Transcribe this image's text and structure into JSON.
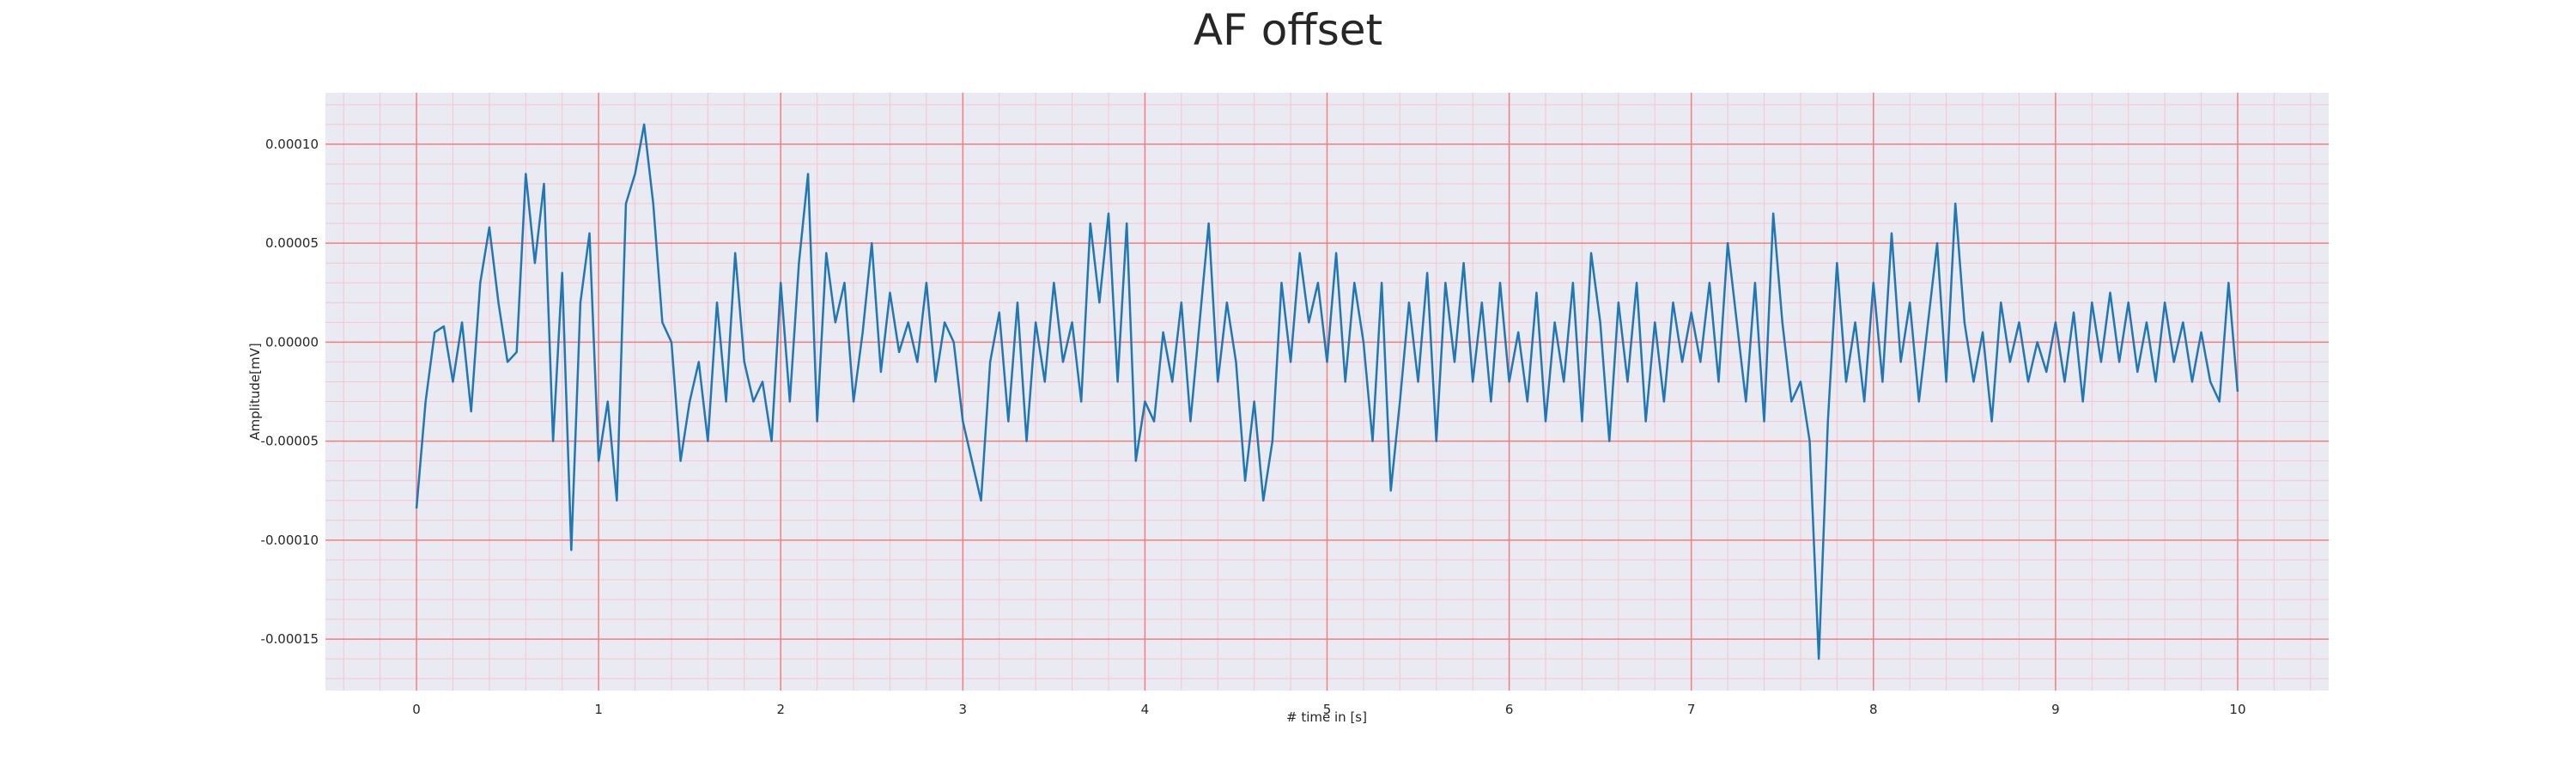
{
  "chart_data": {
    "type": "line",
    "title": "AF offset",
    "xlabel": "# time in [s]",
    "ylabel": "Amplitude[mV]",
    "xlim": [
      -0.5,
      10.5
    ],
    "ylim": [
      -0.000176,
      0.000126
    ],
    "xticks": [
      0,
      1,
      2,
      3,
      4,
      5,
      6,
      7,
      8,
      9,
      10
    ],
    "yticks": [
      {
        "value": -0.00015,
        "label": "-0.00015"
      },
      {
        "value": -0.0001,
        "label": "-0.00010"
      },
      {
        "value": -5e-05,
        "label": "-0.00005"
      },
      {
        "value": 0,
        "label": "0.00000"
      },
      {
        "value": 5e-05,
        "label": "0.00005"
      },
      {
        "value": 0.0001,
        "label": "0.00010"
      }
    ],
    "xticks_minor": [
      -0.4,
      -0.2,
      0,
      0.2,
      0.4,
      0.6,
      0.8,
      1,
      1.2,
      1.4,
      1.6,
      1.8,
      2,
      2.2,
      2.4,
      2.6,
      2.8,
      3,
      3.2,
      3.4,
      3.6,
      3.8,
      4,
      4.2,
      4.4,
      4.6,
      4.8,
      5,
      5.2,
      5.4,
      5.6,
      5.8,
      6,
      6.2,
      6.4,
      6.6,
      6.8,
      7,
      7.2,
      7.4,
      7.6,
      7.8,
      8,
      8.2,
      8.4,
      8.6,
      8.8,
      9,
      9.2,
      9.4,
      9.6,
      9.8,
      10,
      10.2,
      10.4
    ],
    "yticks_minor": [
      -0.00017,
      -0.00016,
      -0.00015,
      -0.00014,
      -0.00013,
      -0.00012,
      -0.00011,
      -0.0001,
      -9e-05,
      -8e-05,
      -7e-05,
      -6e-05,
      -5e-05,
      -4e-05,
      -3e-05,
      -2e-05,
      -1e-05,
      0,
      1e-05,
      2e-05,
      3e-05,
      4e-05,
      5e-05,
      6e-05,
      7e-05,
      8e-05,
      9e-05,
      0.0001,
      0.00011,
      0.00012
    ],
    "grid": true,
    "grid_color": "#f08080",
    "minor_grid_color": "#f5c6cf",
    "background": "#eaeaf2",
    "x": [
      0,
      0.05,
      0.1,
      0.15,
      0.2,
      0.25,
      0.3,
      0.35,
      0.4,
      0.45,
      0.5,
      0.55,
      0.6,
      0.65,
      0.7,
      0.75,
      0.8,
      0.85,
      0.9,
      0.95,
      1,
      1.05,
      1.1,
      1.15,
      1.2,
      1.25,
      1.3,
      1.35,
      1.4,
      1.45,
      1.5,
      1.55,
      1.6,
      1.65,
      1.7,
      1.75,
      1.8,
      1.85,
      1.9,
      1.95,
      2,
      2.05,
      2.1,
      2.15,
      2.2,
      2.25,
      2.3,
      2.35,
      2.4,
      2.45,
      2.5,
      2.55,
      2.6,
      2.65,
      2.7,
      2.75,
      2.8,
      2.85,
      2.9,
      2.95,
      3,
      3.05,
      3.1,
      3.15,
      3.2,
      3.25,
      3.3,
      3.35,
      3.4,
      3.45,
      3.5,
      3.55,
      3.6,
      3.65,
      3.7,
      3.75,
      3.8,
      3.85,
      3.9,
      3.95,
      4,
      4.05,
      4.1,
      4.15,
      4.2,
      4.25,
      4.3,
      4.35,
      4.4,
      4.45,
      4.5,
      4.55,
      4.6,
      4.65,
      4.7,
      4.75,
      4.8,
      4.85,
      4.9,
      4.95,
      5,
      5.05,
      5.1,
      5.15,
      5.2,
      5.25,
      5.3,
      5.35,
      5.4,
      5.45,
      5.5,
      5.55,
      5.6,
      5.65,
      5.7,
      5.75,
      5.8,
      5.85,
      5.9,
      5.95,
      6,
      6.05,
      6.1,
      6.15,
      6.2,
      6.25,
      6.3,
      6.35,
      6.4,
      6.45,
      6.5,
      6.55,
      6.6,
      6.65,
      6.7,
      6.75,
      6.8,
      6.85,
      6.9,
      6.95,
      7,
      7.05,
      7.1,
      7.15,
      7.2,
      7.25,
      7.3,
      7.35,
      7.4,
      7.45,
      7.5,
      7.55,
      7.6,
      7.65,
      7.7,
      7.75,
      7.8,
      7.85,
      7.9,
      7.95,
      8,
      8.05,
      8.1,
      8.15,
      8.2,
      8.25,
      8.3,
      8.35,
      8.4,
      8.45,
      8.5,
      8.55,
      8.6,
      8.65,
      8.7,
      8.75,
      8.8,
      8.85,
      8.9,
      8.95,
      9,
      9.05,
      9.1,
      9.15,
      9.2,
      9.25,
      9.3,
      9.35,
      9.4,
      9.45,
      9.5,
      9.55,
      9.6,
      9.65,
      9.7,
      9.75,
      9.8,
      9.85,
      9.9,
      9.95,
      10
    ],
    "series": [
      {
        "color": "#1f77b4",
        "values": [
          -8.4e-05,
          -3e-05,
          5e-06,
          8e-06,
          -2e-05,
          1e-05,
          -3.5e-05,
          3e-05,
          5.8e-05,
          2e-05,
          -1e-05,
          -5e-06,
          8.5e-05,
          4e-05,
          8e-05,
          -5e-05,
          3.5e-05,
          -0.000105,
          2e-05,
          5.5e-05,
          -6e-05,
          -3e-05,
          -8e-05,
          7e-05,
          8.5e-05,
          0.00011,
          7e-05,
          1e-05,
          0,
          -6e-05,
          -3e-05,
          -1e-05,
          -5e-05,
          2e-05,
          -3e-05,
          4.5e-05,
          -1e-05,
          -3e-05,
          -2e-05,
          -5e-05,
          3e-05,
          -3e-05,
          4e-05,
          8.5e-05,
          -4e-05,
          4.5e-05,
          1e-05,
          3e-05,
          -3e-05,
          5e-06,
          5e-05,
          -1.5e-05,
          2.5e-05,
          -5e-06,
          1e-05,
          -1e-05,
          3e-05,
          -2e-05,
          1e-05,
          0,
          -4e-05,
          -6e-05,
          -8e-05,
          -1e-05,
          1.5e-05,
          -4e-05,
          2e-05,
          -5e-05,
          1e-05,
          -2e-05,
          3e-05,
          -1e-05,
          1e-05,
          -3e-05,
          6e-05,
          2e-05,
          6.5e-05,
          -2e-05,
          6e-05,
          -6e-05,
          -3e-05,
          -4e-05,
          5e-06,
          -2e-05,
          2e-05,
          -4e-05,
          1e-05,
          6e-05,
          -2e-05,
          2e-05,
          -1e-05,
          -7e-05,
          -3e-05,
          -8e-05,
          -5e-05,
          3e-05,
          -1e-05,
          4.5e-05,
          1e-05,
          3e-05,
          -1e-05,
          4.5e-05,
          -2e-05,
          3e-05,
          0,
          -5e-05,
          3e-05,
          -7.5e-05,
          -3e-05,
          2e-05,
          -2e-05,
          3.5e-05,
          -5e-05,
          3e-05,
          -1e-05,
          4e-05,
          -2e-05,
          2e-05,
          -3e-05,
          3e-05,
          -2e-05,
          5e-06,
          -3e-05,
          2.5e-05,
          -4e-05,
          1e-05,
          -2e-05,
          3e-05,
          -4e-05,
          4.5e-05,
          1e-05,
          -5e-05,
          2e-05,
          -2e-05,
          3e-05,
          -4e-05,
          1e-05,
          -3e-05,
          2e-05,
          -1e-05,
          1.5e-05,
          -1e-05,
          3e-05,
          -2e-05,
          5e-05,
          1e-05,
          -3e-05,
          3e-05,
          -4e-05,
          6.5e-05,
          1e-05,
          -3e-05,
          -2e-05,
          -5e-05,
          -0.00016,
          -4e-05,
          4e-05,
          -2e-05,
          1e-05,
          -3e-05,
          3e-05,
          -2e-05,
          5.5e-05,
          -1e-05,
          2e-05,
          -3e-05,
          1e-05,
          5e-05,
          -2e-05,
          7e-05,
          1e-05,
          -2e-05,
          5e-06,
          -4e-05,
          2e-05,
          -1e-05,
          1e-05,
          -2e-05,
          0,
          -1.5e-05,
          1e-05,
          -2e-05,
          1.5e-05,
          -3e-05,
          2e-05,
          -1e-05,
          2.5e-05,
          -1e-05,
          2e-05,
          -1.5e-05,
          1e-05,
          -2e-05,
          2e-05,
          -1e-05,
          1e-05,
          -2e-05,
          5e-06,
          -2e-05,
          -3e-05,
          3e-05,
          -2.5e-05
        ]
      }
    ]
  }
}
